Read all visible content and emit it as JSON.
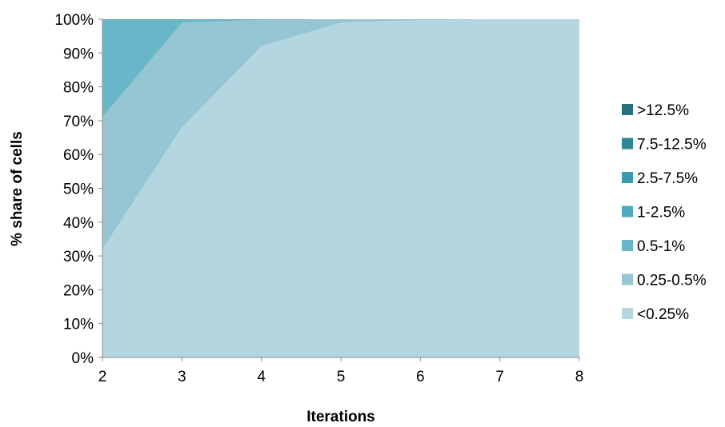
{
  "chart_data": {
    "type": "area",
    "stacked": true,
    "normalized_percent": true,
    "x": [
      2,
      3,
      4,
      5,
      6,
      7,
      8
    ],
    "xlabel": "Iterations",
    "ylabel": "% share of cells",
    "ylim": [
      0,
      100
    ],
    "y_ticks": [
      "0%",
      "10%",
      "20%",
      "30%",
      "40%",
      "50%",
      "60%",
      "70%",
      "80%",
      "90%",
      "100%"
    ],
    "x_ticks": [
      "2",
      "3",
      "4",
      "5",
      "6",
      "7",
      "8"
    ],
    "legend_position": "right",
    "grid": false,
    "series": [
      {
        "name": "<0.25%",
        "color": "#b3d6e0",
        "values": [
          32,
          68,
          92,
          99,
          99.7,
          100,
          100
        ]
      },
      {
        "name": "0.25-0.5%",
        "color": "#96c5d4",
        "values": [
          39,
          31,
          7.8,
          1,
          0.3,
          0,
          0
        ]
      },
      {
        "name": "0.5-1%",
        "color": "#69b6c9",
        "values": [
          29,
          1,
          0.2,
          0,
          0,
          0,
          0
        ]
      },
      {
        "name": "1-2.5%",
        "color": "#4ea9bf",
        "values": [
          0,
          0,
          0,
          0,
          0,
          0,
          0
        ]
      },
      {
        "name": "2.5-7.5%",
        "color": "#3c99ad",
        "values": [
          0,
          0,
          0,
          0,
          0,
          0,
          0
        ]
      },
      {
        "name": "7.5-12.5%",
        "color": "#2f8797",
        "values": [
          0,
          0,
          0,
          0,
          0,
          0,
          0
        ]
      },
      {
        "name": ">12.5%",
        "color": "#2a6f80",
        "values": [
          0,
          0,
          0,
          0,
          0,
          0,
          0
        ]
      }
    ]
  }
}
